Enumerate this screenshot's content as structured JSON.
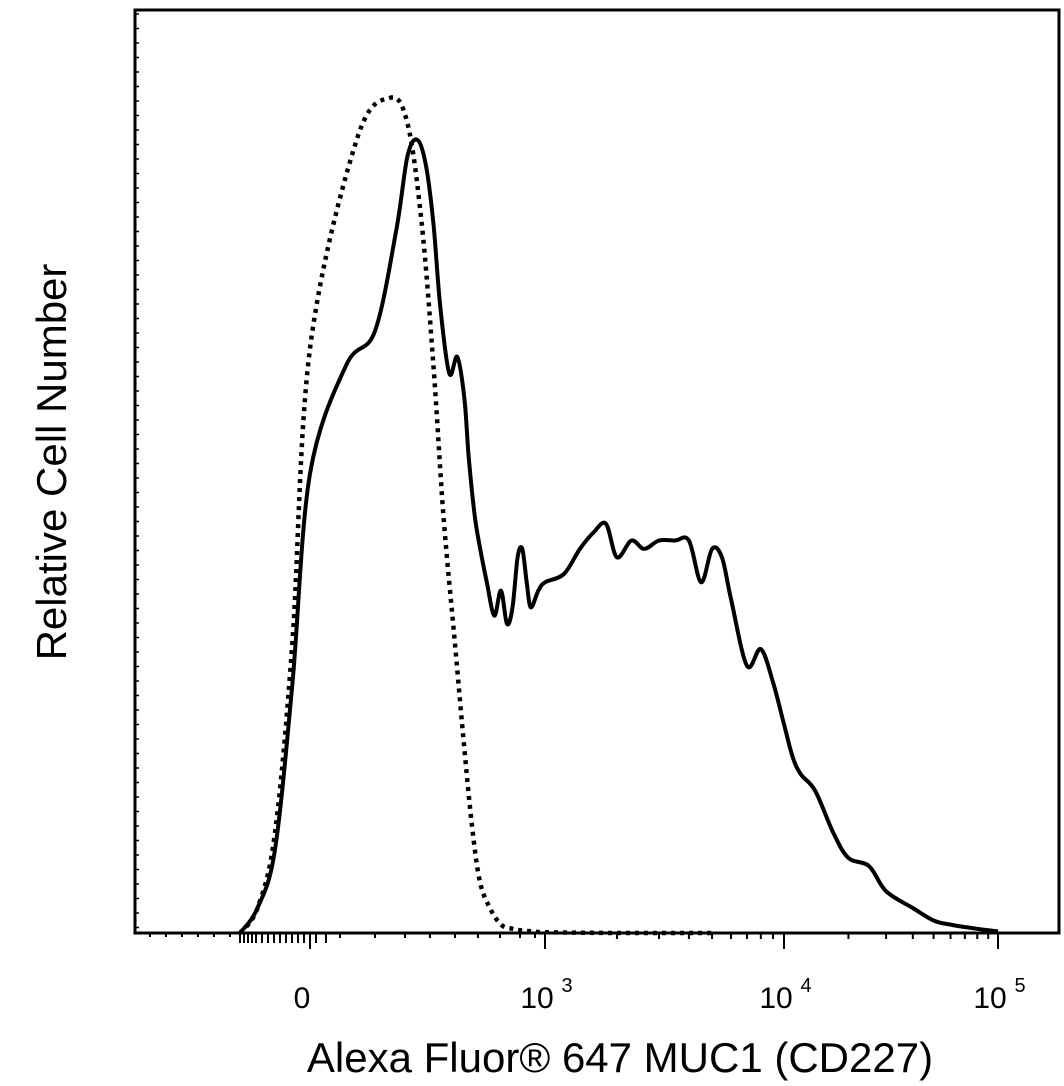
{
  "chart_data": {
    "type": "line",
    "title": "",
    "xlabel": "Alexa Fluor® 647 MUC1 (CD227)",
    "ylabel": "Relative Cell Number",
    "x_scale": "biexponential",
    "xlim": [
      -400,
      150000
    ],
    "ylim": [
      0,
      1.0
    ],
    "grid": false,
    "legend": "none",
    "x_ticks": [
      {
        "value": 0,
        "label": "0",
        "exponent": ""
      },
      {
        "value": 1000,
        "label": "10",
        "exponent": "3"
      },
      {
        "value": 10000,
        "label": "10",
        "exponent": "4"
      },
      {
        "value": 100000,
        "label": "10",
        "exponent": "5"
      }
    ],
    "series": [
      {
        "style": "dotted",
        "color": "#000000",
        "x": [
          -200,
          -150,
          -100,
          -50,
          0,
          40,
          80,
          110,
          140,
          170,
          200,
          240,
          280,
          320,
          360,
          420,
          500,
          600,
          700,
          800,
          1000,
          2000,
          5000
        ],
        "y": [
          0.0,
          0.03,
          0.12,
          0.35,
          0.7,
          0.95,
          1.0,
          0.97,
          0.85,
          0.68,
          0.5,
          0.35,
          0.22,
          0.12,
          0.06,
          0.03,
          0.01,
          0.005,
          0.003,
          0.002,
          0.001,
          0.0,
          0.0
        ]
      },
      {
        "style": "solid",
        "color": "#000000",
        "x": [
          -200,
          -150,
          -100,
          -50,
          0,
          30,
          60,
          90,
          110,
          130,
          150,
          170,
          190,
          220,
          250,
          280,
          300,
          330,
          360,
          400,
          450,
          500,
          550,
          600,
          650,
          700,
          750,
          800,
          900,
          1000,
          1200,
          1400,
          1600,
          1800,
          2000,
          2300,
          2600,
          3000,
          3500,
          4000,
          4500,
          5000,
          5500,
          6000,
          7000,
          8000,
          9000,
          10000,
          11000,
          12000,
          14000,
          17000,
          20000,
          25000,
          30000,
          40000,
          50000,
          60000,
          80000,
          100000
        ],
        "y": [
          0.0,
          0.03,
          0.1,
          0.3,
          0.55,
          0.68,
          0.72,
          0.84,
          0.93,
          0.95,
          0.92,
          0.85,
          0.75,
          0.67,
          0.69,
          0.64,
          0.57,
          0.5,
          0.46,
          0.42,
          0.38,
          0.41,
          0.37,
          0.39,
          0.45,
          0.46,
          0.42,
          0.39,
          0.41,
          0.42,
          0.43,
          0.46,
          0.48,
          0.49,
          0.45,
          0.47,
          0.46,
          0.47,
          0.47,
          0.47,
          0.42,
          0.46,
          0.45,
          0.4,
          0.32,
          0.34,
          0.3,
          0.25,
          0.21,
          0.19,
          0.17,
          0.12,
          0.09,
          0.08,
          0.05,
          0.03,
          0.015,
          0.01,
          0.005,
          0.002
        ]
      }
    ]
  }
}
